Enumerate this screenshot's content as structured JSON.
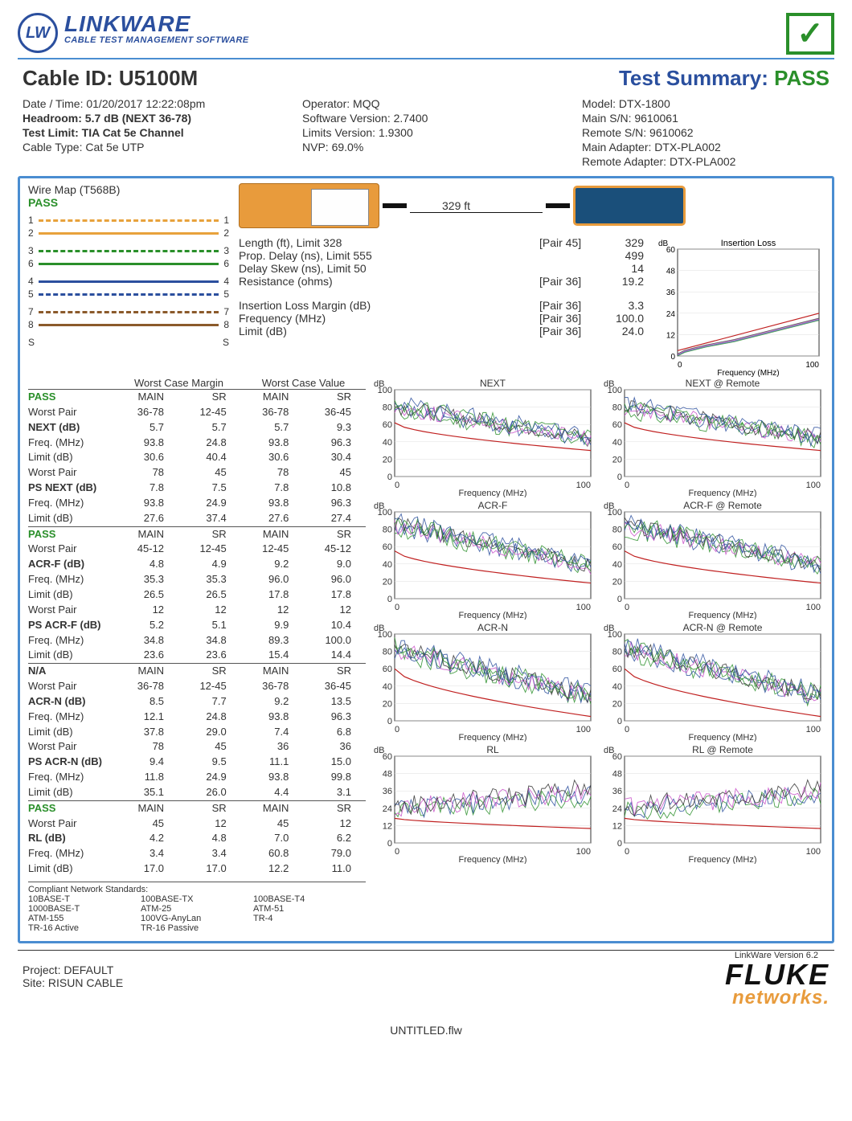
{
  "logo": {
    "lw": "LW",
    "main": "LINKWARE",
    "sub": "CABLE TEST MANAGEMENT SOFTWARE"
  },
  "title": {
    "cable_id_label": "Cable ID:",
    "cable_id": "U5100M",
    "summary_label": "Test Summary:",
    "summary_result": "PASS"
  },
  "meta": {
    "col1": {
      "datetime_label": "Date / Time:",
      "datetime": "01/20/2017 12:22:08pm",
      "headroom_label": "Headroom:",
      "headroom": "5.7 dB (NEXT 36-78)",
      "testlimit_label": "Test Limit:",
      "testlimit": "TIA Cat 5e Channel",
      "cabletype_label": "Cable Type:",
      "cabletype": "Cat 5e UTP"
    },
    "col2": {
      "operator_label": "Operator:",
      "operator": "MQQ",
      "sw_label": "Software Version:",
      "sw": "2.7400",
      "lim_label": "Limits Version:",
      "lim": "1.9300",
      "nvp_label": "NVP:",
      "nvp": "69.0%"
    },
    "col3": {
      "model_label": "Model:",
      "model": "DTX-1800",
      "mainsn_label": "Main S/N:",
      "mainsn": "9610061",
      "remsn_label": "Remote S/N:",
      "remsn": "9610062",
      "mainad_label": "Main Adapter:",
      "mainad": "DTX-PLA002",
      "remad_label": "Remote Adapter:",
      "remad": "DTX-PLA002"
    }
  },
  "wiremap": {
    "title": "Wire Map (T568B)",
    "status": "PASS",
    "wires": [
      {
        "l": "1",
        "r": "1",
        "color": "#e8a23c",
        "style": "dashed"
      },
      {
        "l": "2",
        "r": "2",
        "color": "#e8a23c",
        "style": "solid"
      },
      {
        "l": "3",
        "r": "3",
        "color": "#2a8f2a",
        "style": "dashed"
      },
      {
        "l": "6",
        "r": "6",
        "color": "#2a8f2a",
        "style": "solid"
      },
      {
        "l": "4",
        "r": "4",
        "color": "#2b4f9e",
        "style": "solid"
      },
      {
        "l": "5",
        "r": "5",
        "color": "#2b4f9e",
        "style": "dashed"
      },
      {
        "l": "7",
        "r": "7",
        "color": "#8b5a2b",
        "style": "dashed"
      },
      {
        "l": "8",
        "r": "8",
        "color": "#8b5a2b",
        "style": "solid"
      },
      {
        "l": "S",
        "r": "S",
        "color": "#333",
        "style": "none"
      }
    ]
  },
  "cable_length": "329 ft",
  "measurements": [
    {
      "l": "Length (ft), Limit 328",
      "m": "[Pair 45]",
      "r": "329"
    },
    {
      "l": "Prop. Delay (ns), Limit 555",
      "m": "",
      "r": "499"
    },
    {
      "l": "Delay Skew (ns), Limit 50",
      "m": "",
      "r": "14"
    },
    {
      "l": "Resistance (ohms)",
      "m": "[Pair 36]",
      "r": "19.2"
    },
    {
      "l": "",
      "m": "",
      "r": ""
    },
    {
      "l": "Insertion Loss Margin (dB)",
      "m": "[Pair 36]",
      "r": "3.3"
    },
    {
      "l": "Frequency (MHz)",
      "m": "[Pair 36]",
      "r": "100.0"
    },
    {
      "l": "Limit (dB)",
      "m": "[Pair 36]",
      "r": "24.0"
    }
  ],
  "table_headers": {
    "wcm": "Worst Case Margin",
    "wcv": "Worst Case Value"
  },
  "col_headers": [
    "MAIN",
    "SR",
    "MAIN",
    "SR"
  ],
  "sections": [
    {
      "status": "PASS",
      "rows": [
        {
          "k": "Worst Pair",
          "b": false,
          "v": [
            "36-78",
            "12-45",
            "36-78",
            "36-45"
          ]
        },
        {
          "k": "NEXT (dB)",
          "b": true,
          "v": [
            "5.7",
            "5.7",
            "5.7",
            "9.3"
          ]
        },
        {
          "k": "Freq. (MHz)",
          "b": false,
          "v": [
            "93.8",
            "24.8",
            "93.8",
            "96.3"
          ]
        },
        {
          "k": "Limit (dB)",
          "b": false,
          "v": [
            "30.6",
            "40.4",
            "30.6",
            "30.4"
          ]
        },
        {
          "k": "Worst Pair",
          "b": false,
          "v": [
            "78",
            "45",
            "78",
            "45"
          ]
        },
        {
          "k": "PS NEXT (dB)",
          "b": true,
          "v": [
            "7.8",
            "7.5",
            "7.8",
            "10.8"
          ]
        },
        {
          "k": "Freq. (MHz)",
          "b": false,
          "v": [
            "93.8",
            "24.9",
            "93.8",
            "96.3"
          ]
        },
        {
          "k": "Limit (dB)",
          "b": false,
          "v": [
            "27.6",
            "37.4",
            "27.6",
            "27.4"
          ]
        }
      ]
    },
    {
      "status": "PASS",
      "rows": [
        {
          "k": "Worst Pair",
          "b": false,
          "v": [
            "45-12",
            "12-45",
            "12-45",
            "45-12"
          ]
        },
        {
          "k": "ACR-F (dB)",
          "b": true,
          "v": [
            "4.8",
            "4.9",
            "9.2",
            "9.0"
          ]
        },
        {
          "k": "Freq. (MHz)",
          "b": false,
          "v": [
            "35.3",
            "35.3",
            "96.0",
            "96.0"
          ]
        },
        {
          "k": "Limit (dB)",
          "b": false,
          "v": [
            "26.5",
            "26.5",
            "17.8",
            "17.8"
          ]
        },
        {
          "k": "Worst Pair",
          "b": false,
          "v": [
            "12",
            "12",
            "12",
            "12"
          ]
        },
        {
          "k": "PS ACR-F (dB)",
          "b": true,
          "v": [
            "5.2",
            "5.1",
            "9.9",
            "10.4"
          ]
        },
        {
          "k": "Freq. (MHz)",
          "b": false,
          "v": [
            "34.8",
            "34.8",
            "89.3",
            "100.0"
          ]
        },
        {
          "k": "Limit (dB)",
          "b": false,
          "v": [
            "23.6",
            "23.6",
            "15.4",
            "14.4"
          ]
        }
      ]
    },
    {
      "status": "N/A",
      "rows": [
        {
          "k": "Worst Pair",
          "b": false,
          "v": [
            "36-78",
            "12-45",
            "36-78",
            "36-45"
          ]
        },
        {
          "k": "ACR-N (dB)",
          "b": true,
          "v": [
            "8.5",
            "7.7",
            "9.2",
            "13.5"
          ]
        },
        {
          "k": "Freq. (MHz)",
          "b": false,
          "v": [
            "12.1",
            "24.8",
            "93.8",
            "96.3"
          ]
        },
        {
          "k": "Limit (dB)",
          "b": false,
          "v": [
            "37.8",
            "29.0",
            "7.4",
            "6.8"
          ]
        },
        {
          "k": "Worst Pair",
          "b": false,
          "v": [
            "78",
            "45",
            "36",
            "36"
          ]
        },
        {
          "k": "PS ACR-N (dB)",
          "b": true,
          "v": [
            "9.4",
            "9.5",
            "11.1",
            "15.0"
          ]
        },
        {
          "k": "Freq. (MHz)",
          "b": false,
          "v": [
            "11.8",
            "24.9",
            "93.8",
            "99.8"
          ]
        },
        {
          "k": "Limit (dB)",
          "b": false,
          "v": [
            "35.1",
            "26.0",
            "4.4",
            "3.1"
          ]
        }
      ]
    },
    {
      "status": "PASS",
      "rows": [
        {
          "k": "Worst Pair",
          "b": false,
          "v": [
            "45",
            "12",
            "45",
            "12"
          ]
        },
        {
          "k": "RL (dB)",
          "b": true,
          "v": [
            "4.2",
            "4.8",
            "7.0",
            "6.2"
          ]
        },
        {
          "k": "Freq. (MHz)",
          "b": false,
          "v": [
            "3.4",
            "3.4",
            "60.8",
            "79.0"
          ]
        },
        {
          "k": "Limit (dB)",
          "b": false,
          "v": [
            "17.0",
            "17.0",
            "12.2",
            "11.0"
          ]
        }
      ]
    }
  ],
  "compliant": {
    "title": "Compliant Network Standards:",
    "rows": [
      [
        "10BASE-T",
        "100BASE-TX",
        "100BASE-T4"
      ],
      [
        "1000BASE-T",
        "ATM-25",
        "ATM-51"
      ],
      [
        "ATM-155",
        "100VG-AnyLan",
        "TR-4"
      ],
      [
        "TR-16 Active",
        "TR-16 Passive",
        ""
      ]
    ]
  },
  "charts": {
    "insertion": {
      "title": "Insertion Loss",
      "ymax": 60,
      "yticks": [
        0,
        12,
        24,
        36,
        48,
        60
      ],
      "xmax": 100,
      "xlabel": "Frequency (MHz)",
      "ylabel": "dB",
      "limit": [
        [
          0,
          3
        ],
        [
          100,
          24
        ]
      ],
      "series": [
        [
          0,
          0
        ],
        [
          5,
          2
        ],
        [
          10,
          3
        ],
        [
          20,
          5
        ],
        [
          40,
          8
        ],
        [
          60,
          12
        ],
        [
          80,
          16
        ],
        [
          100,
          20
        ]
      ]
    },
    "next": {
      "title": "NEXT",
      "ymax": 100,
      "yticks": [
        0,
        20,
        40,
        60,
        80,
        100
      ]
    },
    "next_r": {
      "title": "NEXT @ Remote",
      "ymax": 100,
      "yticks": [
        0,
        20,
        40,
        60,
        80,
        100
      ]
    },
    "acrf": {
      "title": "ACR-F",
      "ymax": 100,
      "yticks": [
        0,
        20,
        40,
        60,
        80,
        100
      ]
    },
    "acrf_r": {
      "title": "ACR-F @ Remote",
      "ymax": 100,
      "yticks": [
        0,
        20,
        40,
        60,
        80,
        100
      ]
    },
    "acrn": {
      "title": "ACR-N",
      "ymax": 100,
      "yticks": [
        0,
        20,
        40,
        60,
        80,
        100
      ]
    },
    "acrn_r": {
      "title": "ACR-N @ Remote",
      "ymax": 100,
      "yticks": [
        0,
        20,
        40,
        60,
        80,
        100
      ]
    },
    "rl": {
      "title": "RL",
      "ymax": 60,
      "yticks": [
        0,
        12,
        24,
        36,
        48,
        60
      ]
    },
    "rl_r": {
      "title": "RL @ Remote",
      "ymax": 60,
      "yticks": [
        0,
        12,
        24,
        36,
        48,
        60
      ]
    },
    "colors": [
      "#2a8f2a",
      "#2b4f9e",
      "#c94fc9",
      "#333"
    ],
    "limit_color": "#c02020"
  },
  "footer": {
    "project_label": "Project:",
    "project": "DEFAULT",
    "site_label": "Site:",
    "site": "RISUN  CABLE",
    "fluke1": "FLUKE",
    "fluke2": "networks.",
    "lwver": "LinkWare Version  6.2",
    "filename": "UNTITLED.flw"
  }
}
